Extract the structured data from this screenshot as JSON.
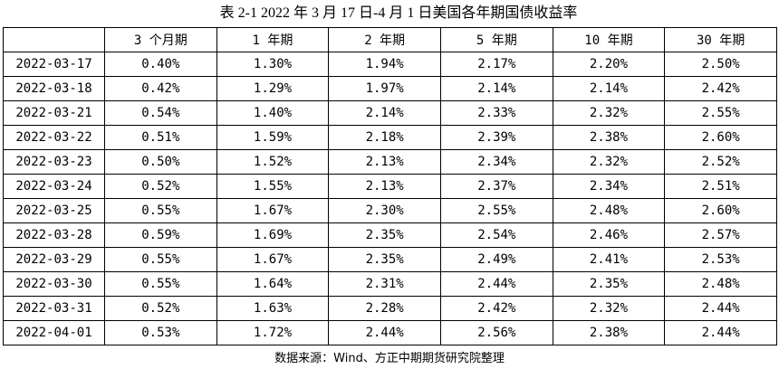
{
  "title": "表 2-1 2022 年 3 月 17 日-4 月 1 日美国各年期国债收益率",
  "table": {
    "header": [
      "",
      "3 个月期",
      "1 年期",
      "2 年期",
      "5 年期",
      "10 年期",
      "30 年期"
    ],
    "rows": [
      [
        "2022-03-17",
        "0.40%",
        "1.30%",
        "1.94%",
        "2.17%",
        "2.20%",
        "2.50%"
      ],
      [
        "2022-03-18",
        "0.42%",
        "1.29%",
        "1.97%",
        "2.14%",
        "2.14%",
        "2.42%"
      ],
      [
        "2022-03-21",
        "0.54%",
        "1.40%",
        "2.14%",
        "2.33%",
        "2.32%",
        "2.55%"
      ],
      [
        "2022-03-22",
        "0.51%",
        "1.59%",
        "2.18%",
        "2.39%",
        "2.38%",
        "2.60%"
      ],
      [
        "2022-03-23",
        "0.50%",
        "1.52%",
        "2.13%",
        "2.34%",
        "2.32%",
        "2.52%"
      ],
      [
        "2022-03-24",
        "0.52%",
        "1.55%",
        "2.13%",
        "2.37%",
        "2.34%",
        "2.51%"
      ],
      [
        "2022-03-25",
        "0.55%",
        "1.67%",
        "2.30%",
        "2.55%",
        "2.48%",
        "2.60%"
      ],
      [
        "2022-03-28",
        "0.59%",
        "1.69%",
        "2.35%",
        "2.54%",
        "2.46%",
        "2.57%"
      ],
      [
        "2022-03-29",
        "0.55%",
        "1.67%",
        "2.35%",
        "2.49%",
        "2.41%",
        "2.53%"
      ],
      [
        "2022-03-30",
        "0.55%",
        "1.64%",
        "2.31%",
        "2.44%",
        "2.35%",
        "2.48%"
      ],
      [
        "2022-03-31",
        "0.52%",
        "1.63%",
        "2.28%",
        "2.42%",
        "2.32%",
        "2.44%"
      ],
      [
        "2022-04-01",
        "0.53%",
        "1.72%",
        "2.44%",
        "2.56%",
        "2.38%",
        "2.44%"
      ]
    ]
  },
  "source": "数据来源：Wind、方正中期期货研究院整理"
}
